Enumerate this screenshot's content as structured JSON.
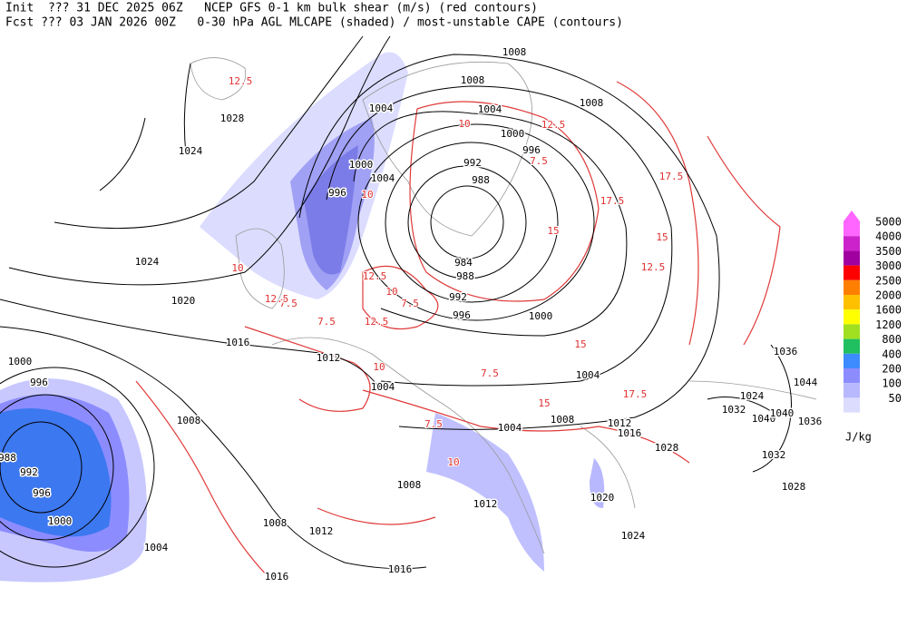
{
  "header": {
    "line1": "Init  ??? 31 DEC 2025 06Z   NCEP GFS 0-1 km bulk shear (m/s) (red contours)",
    "line2": "Fcst ??? 03 JAN 2026 00Z   0-30 hPa AGL MLCAPE (shaded) / most-unstable CAPE (contours)"
  },
  "legend": {
    "levels": [
      5000,
      4000,
      3500,
      3000,
      2500,
      2000,
      1600,
      1200,
      800,
      400,
      200,
      100,
      50
    ],
    "colors": [
      "#ff66ff",
      "#cc22cc",
      "#a000a0",
      "#ff0000",
      "#ff8000",
      "#ffc000",
      "#ffff00",
      "#a0e020",
      "#20c060",
      "#3c8cff",
      "#8c8cff",
      "#b8b8ff",
      "#dcdcff"
    ],
    "unit": "J/kg"
  },
  "isobar_labels": [
    1008,
    1008,
    1028,
    1024,
    1004,
    1004,
    1008,
    1000,
    996,
    992,
    988,
    1004,
    1000,
    996,
    1024,
    1020,
    984,
    988,
    992,
    996,
    1000,
    1016,
    1012,
    1004,
    1004,
    1000,
    996,
    1008,
    1004,
    1008,
    1012,
    1016,
    1028,
    1024,
    1032,
    1040,
    1036,
    1044,
    1040,
    1036,
    1032,
    1028,
    988,
    992,
    996,
    1000,
    1004,
    1008,
    1012,
    1008,
    1012,
    1016,
    1016,
    1020,
    1024
  ],
  "shear_labels": [
    12.5,
    10,
    7.5,
    10,
    12.5,
    15,
    17.5,
    12.5,
    10,
    7.5,
    15,
    12.5,
    17.5,
    7.5,
    10,
    12.5,
    7.5,
    10,
    15,
    7.5,
    12.5,
    10,
    7.5,
    17.5,
    15
  ]
}
